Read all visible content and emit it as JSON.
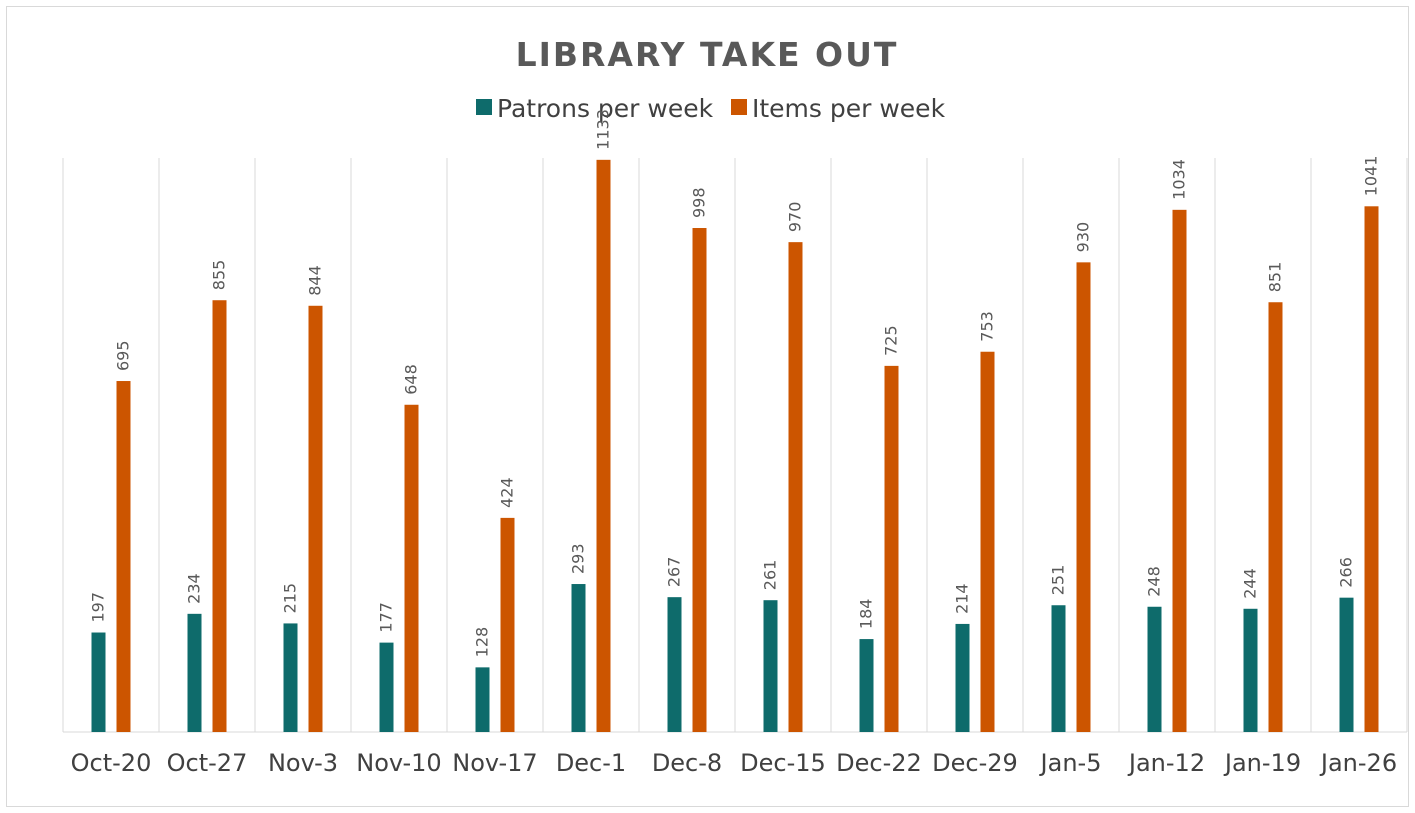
{
  "chart_data": {
    "type": "bar",
    "title": "LIBRARY TAKE OUT",
    "categories": [
      "Oct-20",
      "Oct-27",
      "Nov-3",
      "Nov-10",
      "Nov-17",
      "Dec-1",
      "Dec-8",
      "Dec-15",
      "Dec-22",
      "Dec-29",
      "Jan-5",
      "Jan-12",
      "Jan-19",
      "Jan-26"
    ],
    "series": [
      {
        "name": "Patrons per week",
        "color": "#0e6b6b",
        "values": [
          197,
          234,
          215,
          177,
          128,
          293,
          267,
          261,
          184,
          214,
          251,
          248,
          244,
          266
        ]
      },
      {
        "name": "Items per week",
        "color": "#cc5500",
        "values": [
          695,
          855,
          844,
          648,
          424,
          1133,
          998,
          970,
          725,
          753,
          930,
          1034,
          851,
          1041
        ]
      }
    ],
    "ylim": [
      0,
      1200
    ],
    "grid": "vertical category separators",
    "legend": "top-center",
    "data_labels": "rotated, above bars"
  }
}
